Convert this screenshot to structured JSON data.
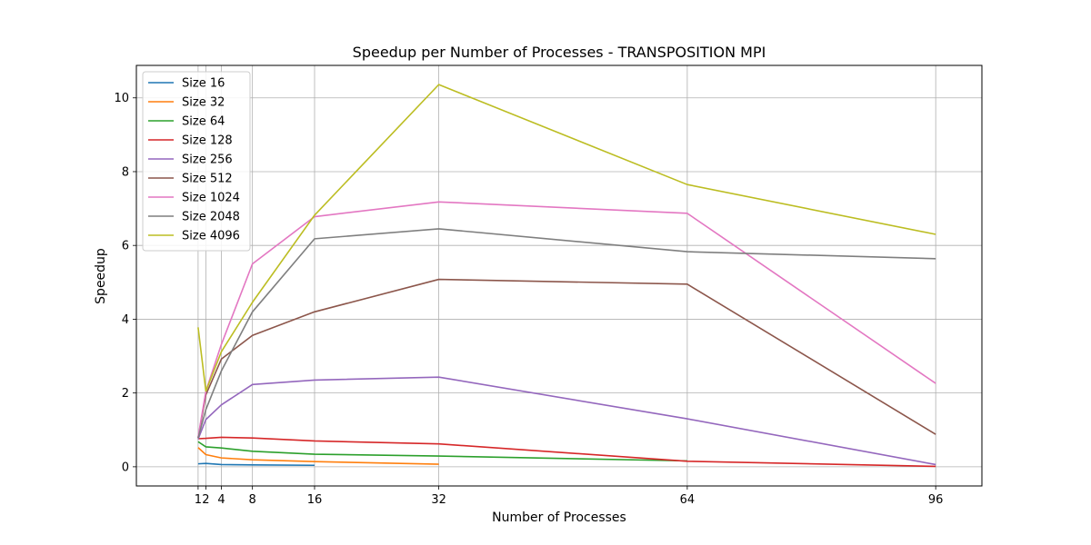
{
  "chart_data": {
    "type": "line",
    "title": "Speedup per Number of Processes - TRANSPOSITION MPI",
    "xlabel": "Number of Processes",
    "ylabel": "Speedup",
    "xlim": [
      -6.95,
      101.95
    ],
    "ylim": [
      -0.52,
      10.88
    ],
    "xticks": [
      1,
      2,
      4,
      8,
      16,
      32,
      64,
      96
    ],
    "yticks": [
      0,
      2,
      4,
      6,
      8,
      10
    ],
    "grid": true,
    "legend_position": "top-left",
    "series": [
      {
        "name": "Size 16",
        "color": "#1f77b4",
        "x": [
          1,
          2,
          4,
          8,
          16
        ],
        "y": [
          0.08,
          0.09,
          0.06,
          0.05,
          0.04
        ]
      },
      {
        "name": "Size 32",
        "color": "#ff7f0e",
        "x": [
          1,
          2,
          4,
          8,
          16,
          32
        ],
        "y": [
          0.52,
          0.33,
          0.24,
          0.19,
          0.14,
          0.07
        ]
      },
      {
        "name": "Size 64",
        "color": "#2ca02c",
        "x": [
          1,
          2,
          4,
          8,
          16,
          32,
          64
        ],
        "y": [
          0.68,
          0.54,
          0.51,
          0.42,
          0.34,
          0.29,
          0.16
        ]
      },
      {
        "name": "Size 128",
        "color": "#d62728",
        "x": [
          1,
          2,
          4,
          8,
          16,
          32,
          64,
          96
        ],
        "y": [
          0.76,
          0.77,
          0.8,
          0.78,
          0.7,
          0.62,
          0.15,
          0.01
        ]
      },
      {
        "name": "Size 256",
        "color": "#9467bd",
        "x": [
          1,
          2,
          4,
          8,
          16,
          32,
          64,
          96
        ],
        "y": [
          0.75,
          1.28,
          1.68,
          2.23,
          2.35,
          2.43,
          1.3,
          0.06
        ]
      },
      {
        "name": "Size 512",
        "color": "#8c564b",
        "x": [
          1,
          2,
          4,
          8,
          16,
          32,
          64,
          96
        ],
        "y": [
          0.78,
          1.95,
          2.92,
          3.56,
          4.2,
          5.08,
          4.95,
          0.88
        ]
      },
      {
        "name": "Size 1024",
        "color": "#e377c2",
        "x": [
          1,
          2,
          4,
          8,
          16,
          32,
          64,
          96
        ],
        "y": [
          0.8,
          2.05,
          3.32,
          5.5,
          6.78,
          7.18,
          6.87,
          2.26
        ]
      },
      {
        "name": "Size 2048",
        "color": "#7f7f7f",
        "x": [
          1,
          2,
          4,
          8,
          16,
          32,
          64,
          96
        ],
        "y": [
          0.78,
          1.55,
          2.6,
          4.2,
          6.18,
          6.45,
          5.83,
          5.64
        ]
      },
      {
        "name": "Size 4096",
        "color": "#bcbd22",
        "x": [
          1,
          2,
          4,
          8,
          16,
          32,
          64,
          96
        ],
        "y": [
          3.78,
          2.05,
          3.12,
          4.46,
          6.82,
          10.36,
          7.65,
          6.3
        ]
      }
    ]
  }
}
